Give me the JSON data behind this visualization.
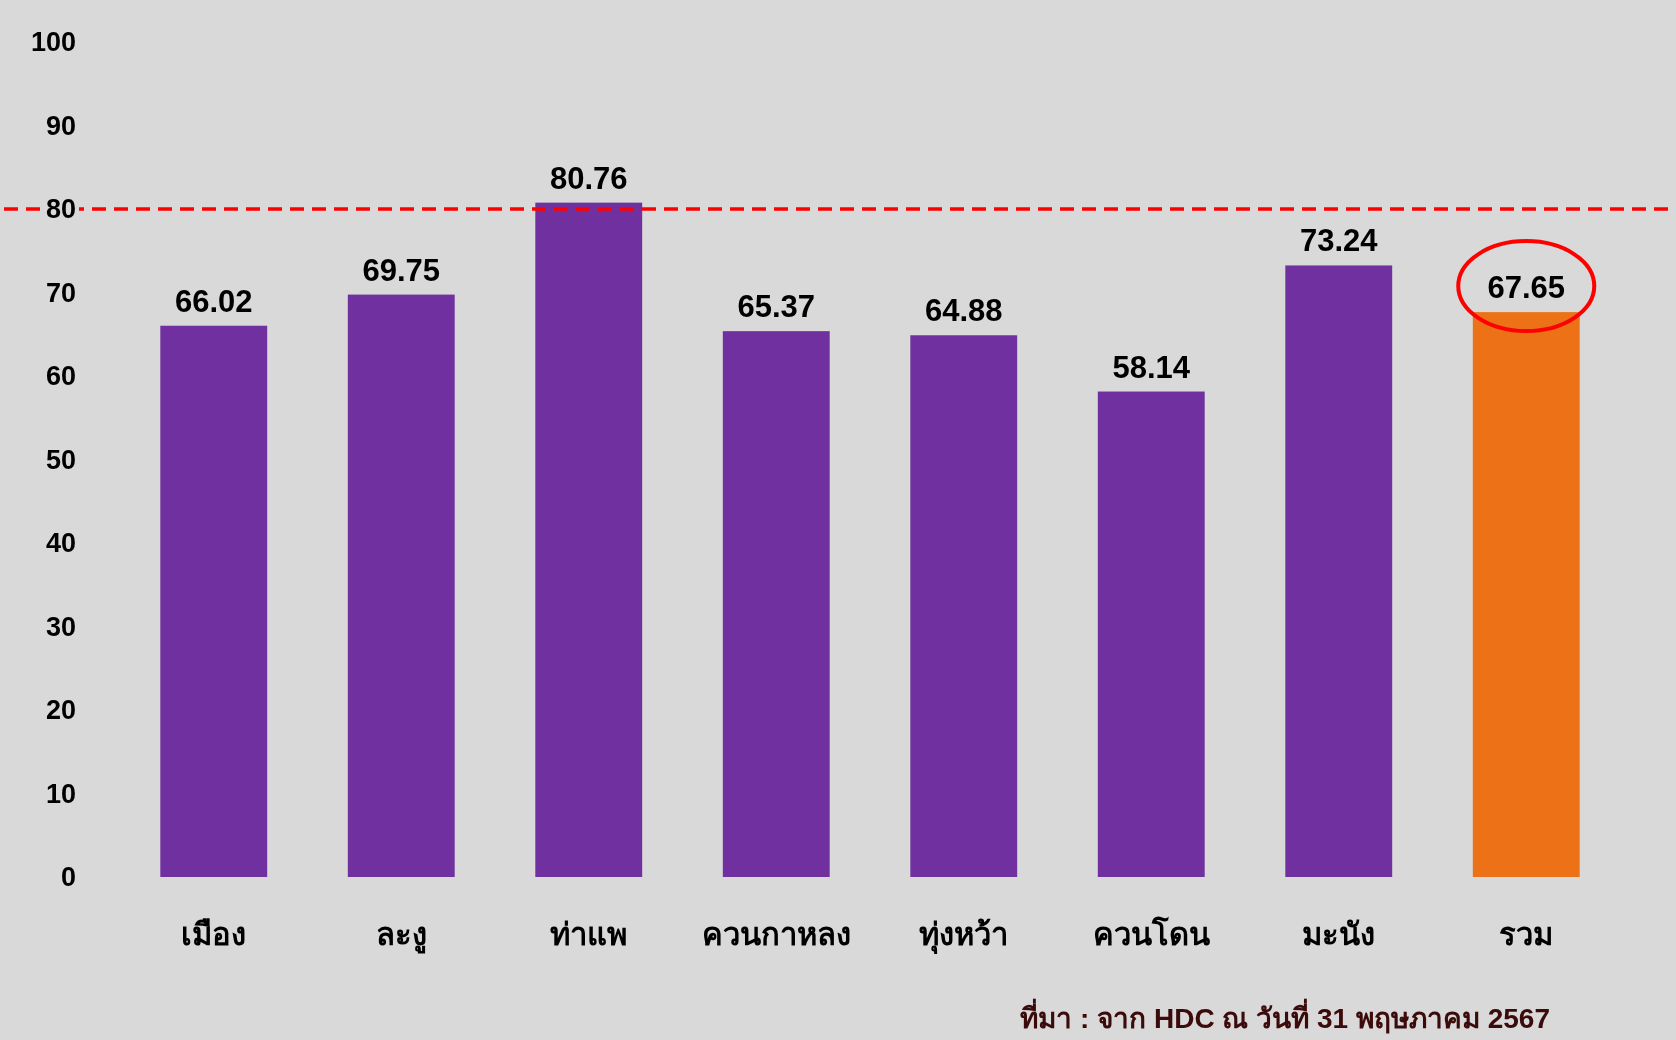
{
  "chart_data": {
    "type": "bar",
    "categories": [
      "เมือง",
      "ละงู",
      "ท่าแพ",
      "ควนกาหลง",
      "ทุ่งหว้า",
      "ควนโดน",
      "มะนัง",
      "รวม"
    ],
    "values": [
      66.02,
      69.75,
      80.76,
      65.37,
      64.88,
      58.14,
      73.24,
      67.65
    ],
    "colors": [
      "#7030a0",
      "#7030a0",
      "#7030a0",
      "#7030a0",
      "#7030a0",
      "#7030a0",
      "#7030a0",
      "#ed7117"
    ],
    "ylim": [
      0,
      100
    ],
    "yticks": [
      0,
      10,
      20,
      30,
      40,
      50,
      60,
      70,
      80,
      90,
      100
    ],
    "data_labels": true,
    "grid": false,
    "ref_lines": [
      {
        "axis": "y",
        "value": 80,
        "color": "#ff0000",
        "line_style": "dashed"
      }
    ],
    "annotations": [
      "ที่มา : จาก HDC ณ วันที่ 31 พฤษภาคม 2567"
    ]
  }
}
